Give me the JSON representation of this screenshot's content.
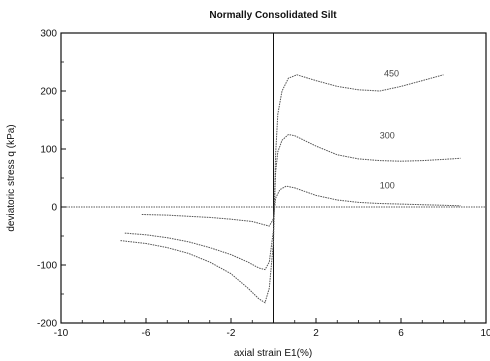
{
  "chart_data": {
    "type": "line",
    "title": "Normally Consolidated Silt",
    "xlabel": "axial strain E1(%)",
    "ylabel": "deviatoric stress q (kPa)",
    "xlim": [
      -10,
      10
    ],
    "ylim": [
      -200,
      300
    ],
    "xticks": [
      -10,
      -6,
      -2,
      2,
      6,
      10
    ],
    "yticks": [
      -200,
      -100,
      0,
      100,
      200,
      300
    ],
    "grid": false,
    "series": [
      {
        "name": "450",
        "points": [
          [
            -7.2,
            -58
          ],
          [
            -6,
            -63
          ],
          [
            -5,
            -70
          ],
          [
            -4,
            -80
          ],
          [
            -3,
            -95
          ],
          [
            -2,
            -115
          ],
          [
            -1.2,
            -140
          ],
          [
            -0.7,
            -158
          ],
          [
            -0.4,
            -165
          ],
          [
            -0.2,
            -140
          ],
          [
            0,
            -60
          ],
          [
            0.1,
            90
          ],
          [
            0.2,
            160
          ],
          [
            0.4,
            200
          ],
          [
            0.7,
            222
          ],
          [
            1.1,
            228
          ],
          [
            2,
            218
          ],
          [
            3,
            208
          ],
          [
            4,
            202
          ],
          [
            5,
            200
          ],
          [
            6,
            208
          ],
          [
            7,
            218
          ],
          [
            8,
            228
          ]
        ]
      },
      {
        "name": "300",
        "points": [
          [
            -7.0,
            -45
          ],
          [
            -6,
            -48
          ],
          [
            -5,
            -53
          ],
          [
            -4,
            -60
          ],
          [
            -3,
            -70
          ],
          [
            -2,
            -82
          ],
          [
            -1.2,
            -95
          ],
          [
            -0.7,
            -105
          ],
          [
            -0.4,
            -108
          ],
          [
            -0.2,
            -95
          ],
          [
            0,
            -40
          ],
          [
            0.1,
            60
          ],
          [
            0.2,
            95
          ],
          [
            0.4,
            115
          ],
          [
            0.7,
            125
          ],
          [
            1,
            123
          ],
          [
            2,
            105
          ],
          [
            3,
            90
          ],
          [
            4,
            83
          ],
          [
            5,
            80
          ],
          [
            6,
            79
          ],
          [
            7,
            80
          ],
          [
            8,
            82
          ],
          [
            8.8,
            84
          ]
        ]
      },
      {
        "name": "100",
        "points": [
          [
            -6.2,
            -13
          ],
          [
            -5,
            -14
          ],
          [
            -4,
            -16
          ],
          [
            -3,
            -18
          ],
          [
            -2,
            -21
          ],
          [
            -1,
            -25
          ],
          [
            -0.5,
            -30
          ],
          [
            -0.2,
            -33
          ],
          [
            0,
            -20
          ],
          [
            0.1,
            15
          ],
          [
            0.3,
            30
          ],
          [
            0.6,
            36
          ],
          [
            1,
            33
          ],
          [
            2,
            20
          ],
          [
            3,
            12
          ],
          [
            4,
            8
          ],
          [
            5,
            6
          ],
          [
            6,
            5
          ],
          [
            7,
            4
          ],
          [
            8,
            3
          ],
          [
            8.8,
            2
          ]
        ]
      }
    ]
  }
}
